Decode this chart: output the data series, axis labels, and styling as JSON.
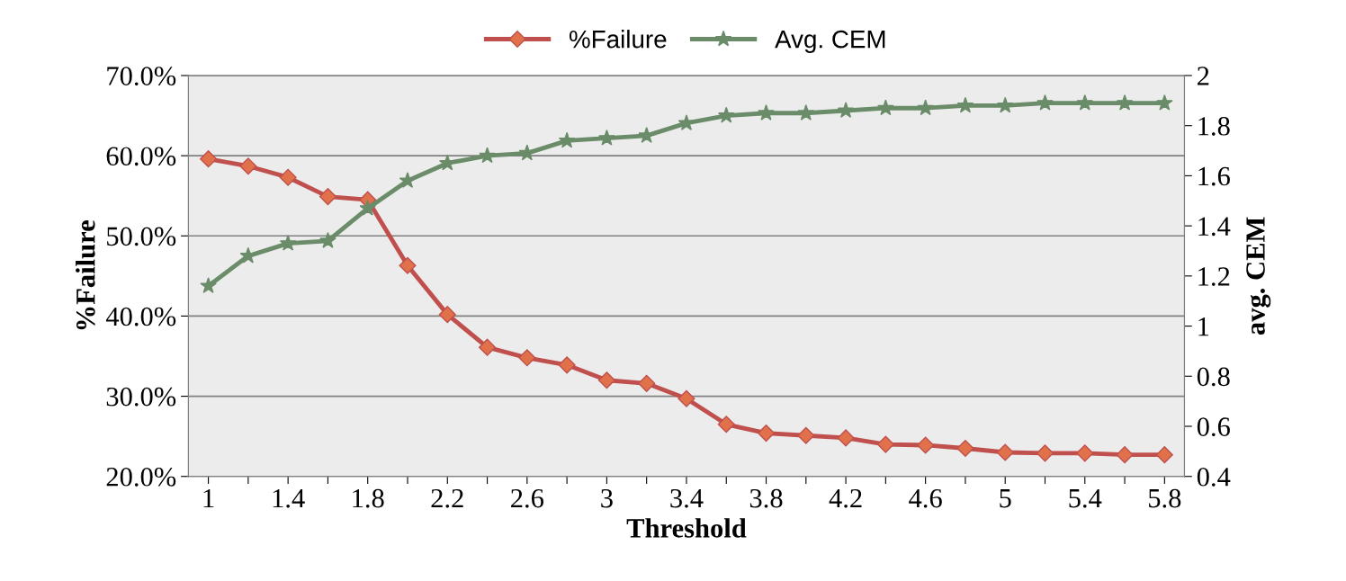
{
  "chart_data": {
    "type": "line",
    "xlabel": "Threshold",
    "ylabel": "%Failure",
    "y2label": "avg. CEM",
    "categories": [
      "1",
      null,
      "1.4",
      null,
      "1.8",
      null,
      "2.2",
      null,
      "2.6",
      null,
      "3",
      null,
      "3.4",
      null,
      "3.8",
      null,
      "4.2",
      null,
      "4.6",
      null,
      "5",
      null,
      "5.4",
      null,
      "5.8"
    ],
    "series": [
      {
        "name": "%Failure",
        "color": "#c0504d",
        "marker": "diamond",
        "values": [
          59.6,
          58.7,
          57.3,
          54.9,
          54.5,
          46.3,
          40.2,
          36.1,
          34.8,
          33.9,
          32.0,
          31.6,
          29.7,
          26.5,
          25.4,
          25.1,
          24.8,
          24.0,
          23.9,
          23.5,
          23.0,
          22.9,
          22.9,
          22.7,
          22.7
        ]
      },
      {
        "name": "Avg. CEM",
        "color": "#6a8c69",
        "marker": "star",
        "axis": "y2",
        "values": [
          1.16,
          1.28,
          1.33,
          1.34,
          1.47,
          1.58,
          1.65,
          1.68,
          1.69,
          1.74,
          1.75,
          1.76,
          1.81,
          1.84,
          1.85,
          1.85,
          1.86,
          1.87,
          1.87,
          1.88,
          1.88,
          1.89,
          1.89,
          1.89,
          1.89
        ]
      }
    ],
    "ylim": [
      20,
      70
    ],
    "yticks": [
      {
        "value": 20,
        "label": "20.0%"
      },
      {
        "value": 30,
        "label": "30.0%"
      },
      {
        "value": 40,
        "label": "40.0%"
      },
      {
        "value": 50,
        "label": "50.0%"
      },
      {
        "value": 60,
        "label": "60.0%"
      },
      {
        "value": 70,
        "label": "70.0%"
      }
    ],
    "y2lim": [
      0.4,
      2
    ],
    "y2ticks": [
      0.4,
      0.6,
      0.8,
      1,
      1.2,
      1.4,
      1.6,
      1.8,
      2
    ],
    "grid": "y",
    "legend": "top",
    "line_style": "solid"
  }
}
